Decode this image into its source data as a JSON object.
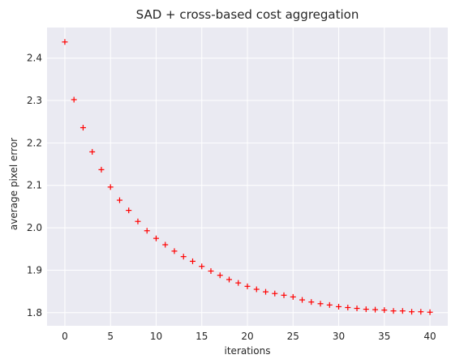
{
  "chart_data": {
    "type": "scatter",
    "title": "SAD + cross-based cost aggregation",
    "xlabel": "iterations",
    "ylabel": "average pixel error",
    "xlim": [
      -1.95,
      41.95
    ],
    "ylim": [
      1.769,
      2.472
    ],
    "x_ticks": [
      0,
      5,
      10,
      15,
      20,
      25,
      30,
      35,
      40
    ],
    "y_ticks": [
      1.8,
      1.9,
      2.0,
      2.1,
      2.2,
      2.3,
      2.4
    ],
    "y_tick_labels": [
      "1.8",
      "1.9",
      "2.0",
      "2.1",
      "2.2",
      "2.3",
      "2.4"
    ],
    "grid": true,
    "marker": "+",
    "colors": {
      "plot_background": "#eaeaf2",
      "grid": "#ffffff",
      "marker": "#ff0000",
      "text": "#262626"
    },
    "x": [
      0,
      1,
      2,
      3,
      4,
      5,
      6,
      7,
      8,
      9,
      10,
      11,
      12,
      13,
      14,
      15,
      16,
      17,
      18,
      19,
      20,
      21,
      22,
      23,
      24,
      25,
      26,
      27,
      28,
      29,
      30,
      31,
      32,
      33,
      34,
      35,
      36,
      37,
      38,
      39,
      40
    ],
    "y": [
      2.438,
      2.302,
      2.236,
      2.179,
      2.137,
      2.096,
      2.065,
      2.041,
      2.015,
      1.993,
      1.975,
      1.96,
      1.945,
      1.932,
      1.921,
      1.909,
      1.898,
      1.888,
      1.878,
      1.87,
      1.862,
      1.855,
      1.849,
      1.845,
      1.841,
      1.837,
      1.83,
      1.825,
      1.821,
      1.818,
      1.814,
      1.812,
      1.81,
      1.808,
      1.807,
      1.806,
      1.804,
      1.804,
      1.802,
      1.802,
      1.801
    ]
  }
}
